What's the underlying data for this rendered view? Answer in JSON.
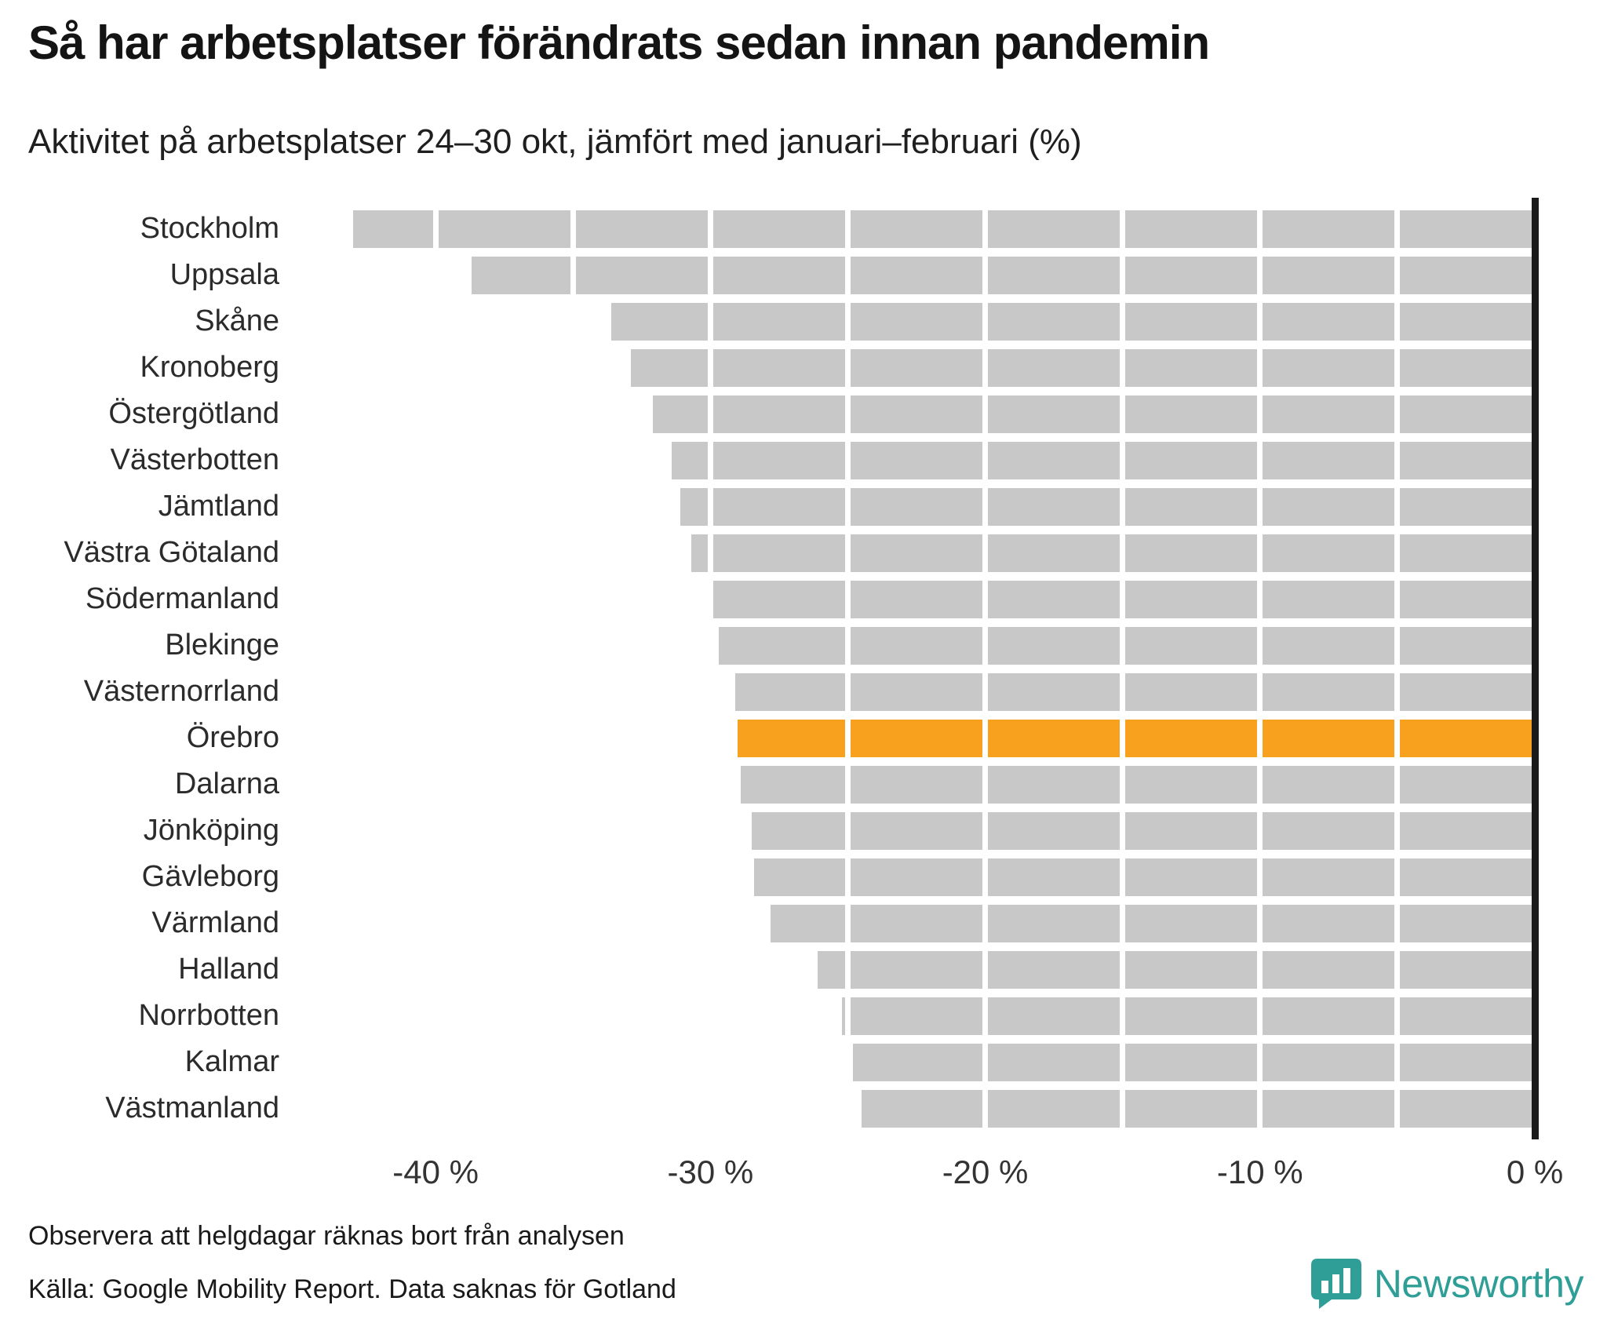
{
  "header": {
    "title": "Så har arbetsplatser förändrats sedan innan pandemin",
    "subtitle": "Aktivitet på arbetsplatser 24–30 okt, jämfört med januari–februari (%)"
  },
  "chart_data": {
    "type": "bar",
    "orientation": "horizontal",
    "title": "Så har arbetsplatser förändrats sedan innan pandemin",
    "subtitle": "Aktivitet på arbetsplatser 24–30 okt, jämfört med januari–februari (%)",
    "xlabel": "",
    "ylabel": "",
    "unit": "%",
    "categories": [
      "Stockholm",
      "Uppsala",
      "Skåne",
      "Kronoberg",
      "Östergötland",
      "Västerbotten",
      "Jämtland",
      "Västra Götaland",
      "Södermanland",
      "Blekinge",
      "Västernorrland",
      "Örebro",
      "Dalarna",
      "Jönköping",
      "Gävleborg",
      "Värmland",
      "Halland",
      "Norrbotten",
      "Kalmar",
      "Västmanland"
    ],
    "values": [
      -43.0,
      -38.7,
      -33.6,
      -32.9,
      -32.1,
      -31.4,
      -31.1,
      -30.7,
      -29.9,
      -29.7,
      -29.1,
      -29.0,
      -28.9,
      -28.5,
      -28.4,
      -27.8,
      -26.1,
      -25.2,
      -24.8,
      -24.5
    ],
    "highlight_category": "Örebro",
    "xlim": [
      -45,
      0
    ],
    "x_ticks": [
      {
        "value": -40,
        "label": "-40 %"
      },
      {
        "value": -30,
        "label": "-30 %"
      },
      {
        "value": -20,
        "label": "-20 %"
      },
      {
        "value": -10,
        "label": "-10 %"
      },
      {
        "value": 0,
        "label": "0 %"
      }
    ],
    "gridline_interval": 5,
    "grid": "white vertical lines over bars every 5 %",
    "legend": "none",
    "zero_line": true
  },
  "footer": {
    "note": "Observera att helgdagar räknas bort från analysen",
    "source": "Källa: Google Mobility Report. Data saknas för Gotland"
  },
  "branding": {
    "logo_text": "Newsworthy"
  },
  "colors": {
    "bar": "#C8C8C8",
    "highlight": "#F7A11E",
    "zero_line": "#1A1A1A",
    "text": "#1A1A1A",
    "brand_teal": "#2E9E96"
  }
}
